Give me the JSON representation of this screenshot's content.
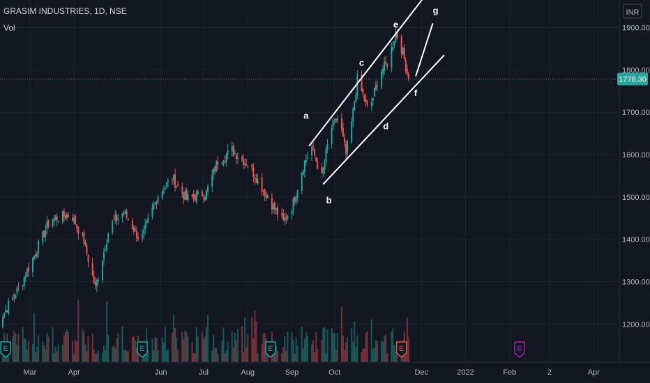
{
  "chart_data": {
    "type": "candlestick",
    "symbol": "GRASIM INDUSTRIES, 1D, NSE",
    "volume_label": "Vol",
    "currency": "INR",
    "last_price": 1778.3,
    "last_price_label": "1778.30",
    "y_ticks": [
      "1200.00",
      "1300.00",
      "1400.00",
      "1500.00",
      "1600.00",
      "1700.00",
      "1800.00",
      "1900.00"
    ],
    "y_tick_values": [
      1200,
      1300,
      1400,
      1500,
      1600,
      1700,
      1800,
      1900
    ],
    "ylim": [
      1110,
      1965
    ],
    "x_ticks": [
      "Mar",
      "Apr",
      "Jun",
      "Jul",
      "Aug",
      "Sep",
      "Oct",
      "Dec",
      "2022",
      "Feb",
      "2",
      "Apr"
    ],
    "x_tick_days": [
      26,
      57,
      118,
      148,
      179,
      210,
      240,
      301,
      332,
      363,
      391,
      422
    ],
    "xlim": [
      5,
      440
    ],
    "colors": {
      "up": "#26a69a",
      "down": "#ef5350",
      "background": "#131722",
      "grid": "#1e222d",
      "channel": "#ffffff",
      "price_line": "#26a69a"
    },
    "anchors": [
      [
        2,
        1195
      ],
      [
        20,
        1295
      ],
      [
        40,
        1445
      ],
      [
        55,
        1460
      ],
      [
        64,
        1395
      ],
      [
        72,
        1285
      ],
      [
        82,
        1430
      ],
      [
        92,
        1465
      ],
      [
        104,
        1395
      ],
      [
        116,
        1505
      ],
      [
        126,
        1545
      ],
      [
        136,
        1495
      ],
      [
        150,
        1510
      ],
      [
        158,
        1585
      ],
      [
        168,
        1610
      ],
      [
        180,
        1575
      ],
      [
        192,
        1505
      ],
      [
        204,
        1440
      ],
      [
        211,
        1485
      ],
      [
        218,
        1575
      ],
      [
        224,
        1618
      ],
      [
        231,
        1545
      ],
      [
        237,
        1658
      ],
      [
        243,
        1690
      ],
      [
        248,
        1600
      ],
      [
        252,
        1675
      ],
      [
        256,
        1778
      ],
      [
        264,
        1700
      ],
      [
        272,
        1795
      ],
      [
        278,
        1820
      ],
      [
        283,
        1890
      ],
      [
        288,
        1840
      ],
      [
        292,
        1778
      ]
    ],
    "events": [
      {
        "label": "E",
        "day": 9,
        "color": "#26a69a"
      },
      {
        "label": "E",
        "day": 105,
        "color": "#26a69a"
      },
      {
        "label": "E",
        "day": 195,
        "color": "#26a69a"
      },
      {
        "label": "E",
        "day": 287,
        "color": "#ef5350"
      },
      {
        "label": "E",
        "day": 370,
        "color": "#9c27b0"
      }
    ],
    "channel_lines": [
      {
        "from": [
          222,
          1620
        ],
        "to": [
          302,
          1968
        ]
      },
      {
        "from": [
          232,
          1530
        ],
        "to": [
          317,
          1835
        ]
      },
      {
        "from": [
          297,
          1785
        ],
        "to": [
          309,
          1910
        ]
      }
    ],
    "annotations": [
      {
        "label": "a",
        "day": 220,
        "value": 1685
      },
      {
        "label": "b",
        "day": 236,
        "value": 1485
      },
      {
        "label": "c",
        "day": 259,
        "value": 1810
      },
      {
        "label": "d",
        "day": 276,
        "value": 1660
      },
      {
        "label": "e",
        "day": 283,
        "value": 1900
      },
      {
        "label": "f",
        "day": 297,
        "value": 1738
      },
      {
        "label": "g",
        "day": 311,
        "value": 1933
      }
    ]
  }
}
